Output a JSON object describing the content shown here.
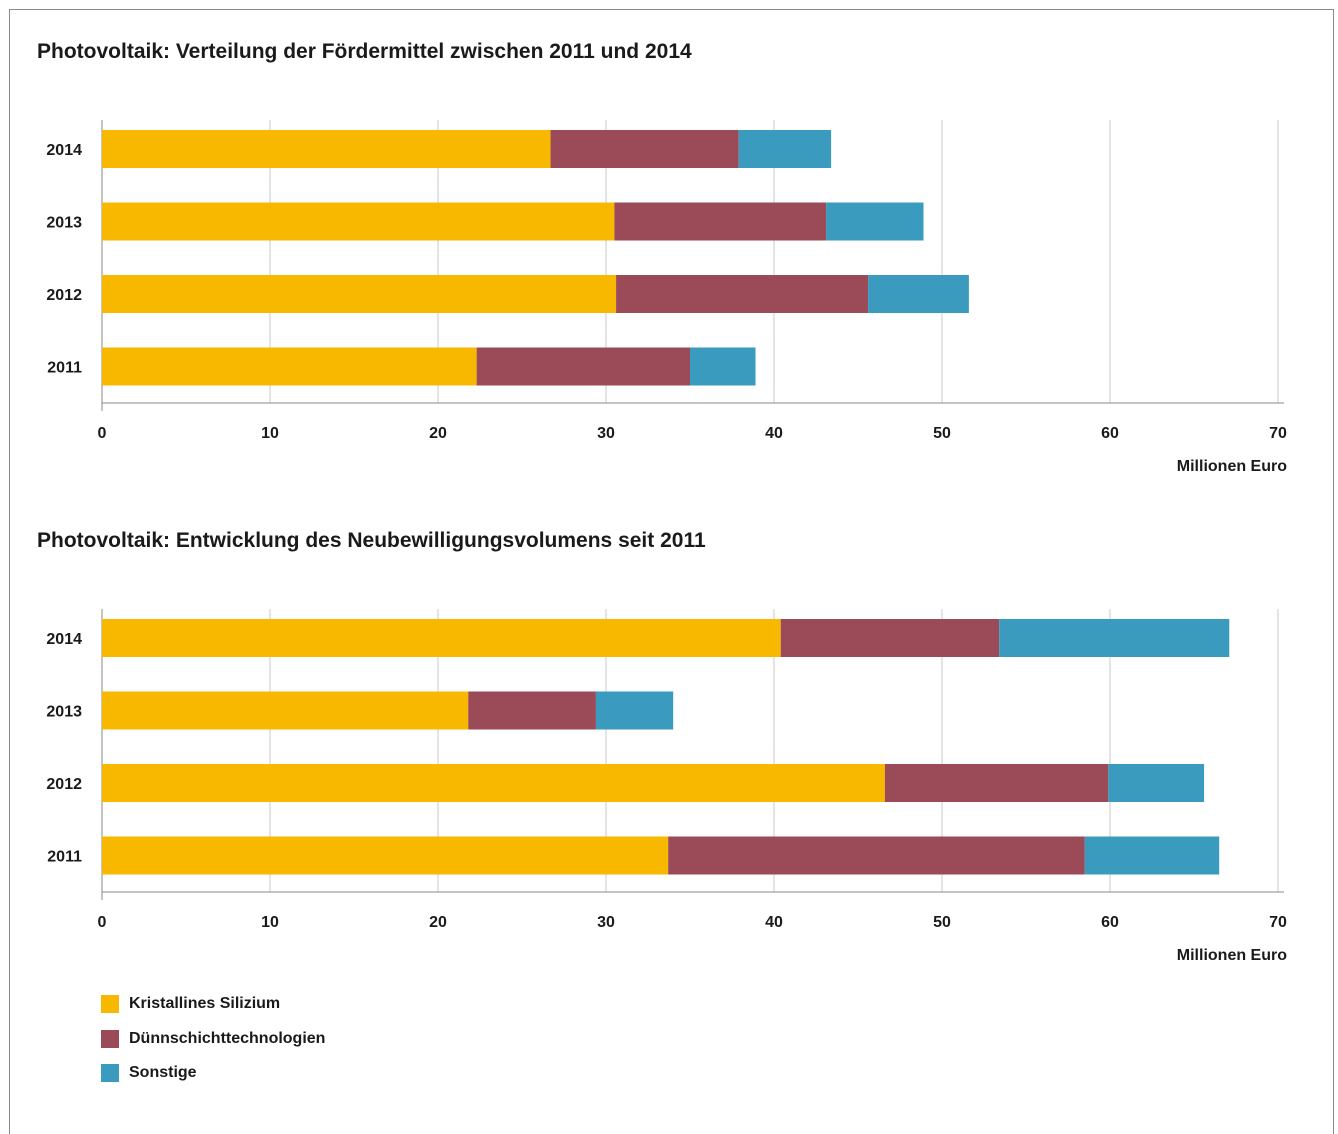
{
  "legend": [
    {
      "label": "Kristallines Silizium",
      "color": "#f8b800"
    },
    {
      "label": "Dünnschichttechnologien",
      "color": "#9b4a58"
    },
    {
      "label": "Sonstige",
      "color": "#3a9bbf"
    }
  ],
  "chart_data": [
    {
      "type": "bar",
      "orientation": "horizontal",
      "stacked": true,
      "title": "Photovoltaik: Verteilung der Fördermittel zwischen 2011 und 2014",
      "xlabel": "Millionen Euro",
      "ylabel": "",
      "xlim": [
        0,
        70
      ],
      "xticks": [
        0,
        10,
        20,
        30,
        40,
        50,
        60,
        70
      ],
      "grid": true,
      "categories": [
        "2014",
        "2013",
        "2012",
        "2011"
      ],
      "series": [
        {
          "name": "Kristallines Silizium",
          "color": "#f8b800",
          "values": [
            26.7,
            30.5,
            30.6,
            22.3
          ]
        },
        {
          "name": "Dünnschichttechnologien",
          "color": "#9b4a58",
          "values": [
            11.2,
            12.6,
            15.0,
            12.7
          ]
        },
        {
          "name": "Sonstige",
          "color": "#3a9bbf",
          "values": [
            5.5,
            5.8,
            6.0,
            3.9
          ]
        }
      ]
    },
    {
      "type": "bar",
      "orientation": "horizontal",
      "stacked": true,
      "title": "Photovoltaik: Entwicklung des Neubewilligungsvolumens seit 2011",
      "xlabel": "Millionen Euro",
      "ylabel": "",
      "xlim": [
        0,
        70
      ],
      "xticks": [
        0,
        10,
        20,
        30,
        40,
        50,
        60,
        70
      ],
      "grid": true,
      "categories": [
        "2014",
        "2013",
        "2012",
        "2011"
      ],
      "series": [
        {
          "name": "Kristallines Silizium",
          "color": "#f8b800",
          "values": [
            40.4,
            21.8,
            46.6,
            33.7
          ]
        },
        {
          "name": "Dünnschichttechnologien",
          "color": "#9b4a58",
          "values": [
            13.0,
            7.6,
            13.3,
            24.8
          ]
        },
        {
          "name": "Sonstige",
          "color": "#3a9bbf",
          "values": [
            13.7,
            4.6,
            5.7,
            8.0
          ]
        }
      ]
    }
  ]
}
